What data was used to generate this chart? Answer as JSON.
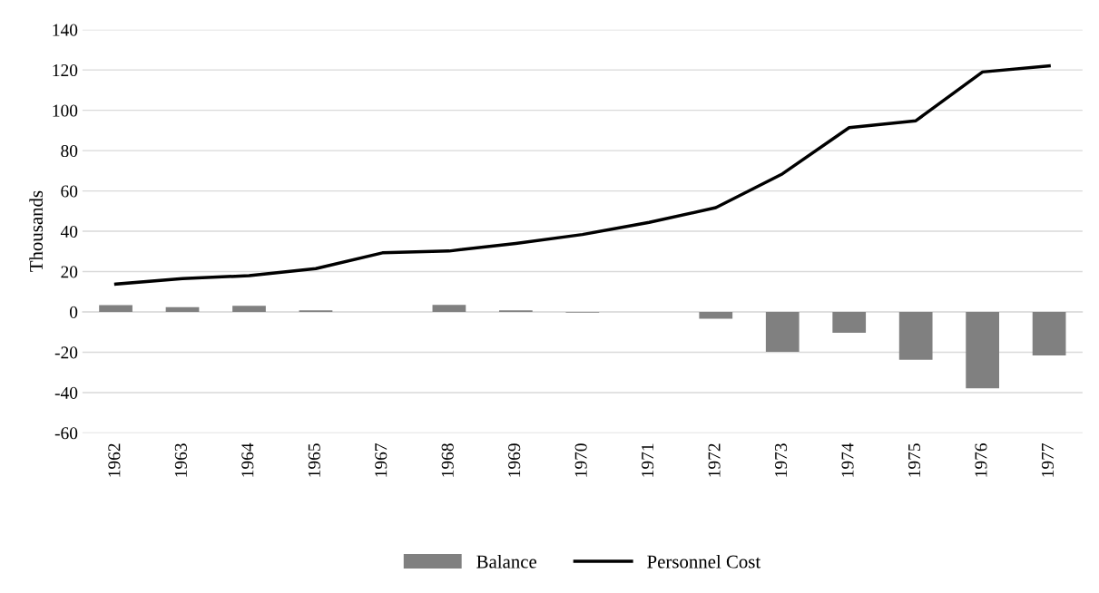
{
  "chart_data": {
    "type": "bar",
    "ylabel": "Thousands",
    "categories": [
      "1962",
      "1963",
      "1964",
      "1965",
      "1967",
      "1968",
      "1969",
      "1970",
      "1971",
      "1972",
      "1973",
      "1974",
      "1975",
      "1976",
      "1977"
    ],
    "series": [
      {
        "name": "Balance",
        "color": "#808080",
        "values": [
          3.4,
          2.4,
          3.0,
          0.8,
          0,
          3.5,
          0.8,
          -0.3,
          0,
          -3.4,
          -19.8,
          -10.3,
          -23.7,
          -37.9,
          -21.6
        ]
      },
      {
        "name": "Personnel Cost",
        "type": "line",
        "color": "#000000",
        "values": [
          13.8,
          16.5,
          18,
          21.5,
          29.3,
          30.2,
          34,
          38.4,
          44.4,
          51.7,
          68.5,
          91.4,
          94.8,
          119,
          122
        ]
      }
    ],
    "ylim": [
      -60,
      140
    ],
    "yticks": [
      -60,
      -40,
      -20,
      0,
      20,
      40,
      60,
      80,
      100,
      120,
      140
    ],
    "grid": "y",
    "legend": "bottom"
  }
}
